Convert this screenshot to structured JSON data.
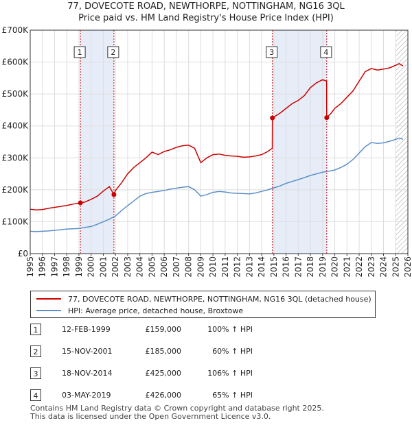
{
  "title_line1": "77, DOVECOTE ROAD, NEWTHORPE, NOTTINGHAM, NG16 3QL",
  "title_line2": "Price paid vs. HM Land Registry's House Price Index (HPI)",
  "colors": {
    "property": "#cc0000",
    "hpi": "#5b8fc9",
    "band": "#e6edf8",
    "marker_line": "#cc0000"
  },
  "chart_data": {
    "type": "line",
    "xlim": [
      1995,
      2026
    ],
    "ylim": [
      0,
      700000
    ],
    "x_ticks": [
      "1995",
      "1996",
      "1997",
      "1998",
      "1999",
      "2000",
      "2001",
      "2002",
      "2003",
      "2004",
      "2005",
      "2006",
      "2007",
      "2008",
      "2009",
      "2010",
      "2011",
      "2012",
      "2013",
      "2014",
      "2015",
      "2016",
      "2017",
      "2018",
      "2019",
      "2020",
      "2021",
      "2022",
      "2023",
      "2024",
      "2025",
      "2026"
    ],
    "y_ticks": [
      {
        "value": 0,
        "label": "£0"
      },
      {
        "value": 100000,
        "label": "£100K"
      },
      {
        "value": 200000,
        "label": "£200K"
      },
      {
        "value": 300000,
        "label": "£300K"
      },
      {
        "value": 400000,
        "label": "£400K"
      },
      {
        "value": 500000,
        "label": "£500K"
      },
      {
        "value": 600000,
        "label": "£600K"
      },
      {
        "value": 700000,
        "label": "£700K"
      }
    ],
    "shaded_bands": [
      [
        1999.12,
        2001.87
      ],
      [
        2014.88,
        2019.34
      ]
    ],
    "hatch_from": 2025.0,
    "series": [
      {
        "name": "77, DOVECOTE ROAD, NEWTHORPE, NOTTINGHAM, NG16 3QL (detached house)",
        "color": "#cc0000",
        "points": [
          [
            1995.0,
            139000
          ],
          [
            1995.5,
            137000
          ],
          [
            1996.0,
            138000
          ],
          [
            1996.5,
            142000
          ],
          [
            1997.0,
            145000
          ],
          [
            1997.5,
            148000
          ],
          [
            1998.0,
            151000
          ],
          [
            1998.5,
            155000
          ],
          [
            1999.12,
            159000
          ],
          [
            1999.5,
            162000
          ],
          [
            2000.0,
            170000
          ],
          [
            2000.5,
            180000
          ],
          [
            2001.0,
            196000
          ],
          [
            2001.5,
            210000
          ],
          [
            2001.87,
            185000
          ],
          [
            2002.0,
            198000
          ],
          [
            2002.5,
            222000
          ],
          [
            2003.0,
            250000
          ],
          [
            2003.5,
            270000
          ],
          [
            2004.0,
            285000
          ],
          [
            2004.5,
            300000
          ],
          [
            2005.0,
            318000
          ],
          [
            2005.5,
            310000
          ],
          [
            2006.0,
            320000
          ],
          [
            2006.5,
            325000
          ],
          [
            2007.0,
            333000
          ],
          [
            2007.5,
            338000
          ],
          [
            2008.0,
            340000
          ],
          [
            2008.5,
            330000
          ],
          [
            2009.0,
            285000
          ],
          [
            2009.5,
            300000
          ],
          [
            2010.0,
            310000
          ],
          [
            2010.5,
            312000
          ],
          [
            2011.0,
            308000
          ],
          [
            2011.5,
            306000
          ],
          [
            2012.0,
            305000
          ],
          [
            2012.5,
            302000
          ],
          [
            2013.0,
            303000
          ],
          [
            2013.5,
            306000
          ],
          [
            2014.0,
            310000
          ],
          [
            2014.5,
            320000
          ],
          [
            2014.87,
            330000
          ],
          [
            2014.88,
            425000
          ],
          [
            2015.5,
            440000
          ],
          [
            2016.0,
            455000
          ],
          [
            2016.5,
            470000
          ],
          [
            2017.0,
            480000
          ],
          [
            2017.5,
            495000
          ],
          [
            2018.0,
            520000
          ],
          [
            2018.5,
            535000
          ],
          [
            2019.0,
            545000
          ],
          [
            2019.33,
            540000
          ],
          [
            2019.34,
            426000
          ],
          [
            2019.7,
            440000
          ],
          [
            2020.0,
            455000
          ],
          [
            2020.5,
            470000
          ],
          [
            2021.0,
            490000
          ],
          [
            2021.5,
            510000
          ],
          [
            2022.0,
            540000
          ],
          [
            2022.5,
            570000
          ],
          [
            2023.0,
            580000
          ],
          [
            2023.5,
            575000
          ],
          [
            2024.0,
            578000
          ],
          [
            2024.5,
            582000
          ],
          [
            2025.0,
            590000
          ],
          [
            2025.3,
            595000
          ],
          [
            2025.6,
            588000
          ]
        ]
      },
      {
        "name": "HPI: Average price, detached house, Broxtowe",
        "color": "#5b8fc9",
        "points": [
          [
            1995.0,
            70000
          ],
          [
            1995.5,
            69000
          ],
          [
            1996.0,
            70000
          ],
          [
            1996.5,
            71000
          ],
          [
            1997.0,
            73000
          ],
          [
            1997.5,
            75000
          ],
          [
            1998.0,
            77000
          ],
          [
            1998.5,
            78000
          ],
          [
            1999.0,
            79000
          ],
          [
            1999.5,
            82000
          ],
          [
            2000.0,
            85000
          ],
          [
            2000.5,
            92000
          ],
          [
            2001.0,
            100000
          ],
          [
            2001.5,
            108000
          ],
          [
            2002.0,
            118000
          ],
          [
            2002.5,
            135000
          ],
          [
            2003.0,
            150000
          ],
          [
            2003.5,
            165000
          ],
          [
            2004.0,
            180000
          ],
          [
            2004.5,
            188000
          ],
          [
            2005.0,
            192000
          ],
          [
            2005.5,
            195000
          ],
          [
            2006.0,
            198000
          ],
          [
            2006.5,
            202000
          ],
          [
            2007.0,
            205000
          ],
          [
            2007.5,
            208000
          ],
          [
            2008.0,
            210000
          ],
          [
            2008.5,
            200000
          ],
          [
            2009.0,
            180000
          ],
          [
            2009.5,
            185000
          ],
          [
            2010.0,
            192000
          ],
          [
            2010.5,
            195000
          ],
          [
            2011.0,
            193000
          ],
          [
            2011.5,
            190000
          ],
          [
            2012.0,
            189000
          ],
          [
            2012.5,
            188000
          ],
          [
            2013.0,
            187000
          ],
          [
            2013.5,
            190000
          ],
          [
            2014.0,
            195000
          ],
          [
            2014.5,
            200000
          ],
          [
            2015.0,
            206000
          ],
          [
            2015.5,
            212000
          ],
          [
            2016.0,
            220000
          ],
          [
            2016.5,
            226000
          ],
          [
            2017.0,
            232000
          ],
          [
            2017.5,
            238000
          ],
          [
            2018.0,
            245000
          ],
          [
            2018.5,
            250000
          ],
          [
            2019.0,
            255000
          ],
          [
            2019.5,
            258000
          ],
          [
            2020.0,
            262000
          ],
          [
            2020.5,
            270000
          ],
          [
            2021.0,
            280000
          ],
          [
            2021.5,
            295000
          ],
          [
            2022.0,
            315000
          ],
          [
            2022.5,
            335000
          ],
          [
            2023.0,
            348000
          ],
          [
            2023.5,
            345000
          ],
          [
            2024.0,
            347000
          ],
          [
            2024.5,
            352000
          ],
          [
            2025.0,
            358000
          ],
          [
            2025.3,
            362000
          ],
          [
            2025.6,
            358000
          ]
        ]
      }
    ],
    "sales": [
      {
        "id": "1",
        "x": 1999.12,
        "y": 159000
      },
      {
        "id": "2",
        "x": 2001.87,
        "y": 185000
      },
      {
        "id": "3",
        "x": 2014.88,
        "y": 425000
      },
      {
        "id": "4",
        "x": 2019.34,
        "y": 426000
      }
    ]
  },
  "legend": {
    "property_label": "77, DOVECOTE ROAD, NEWTHORPE, NOTTINGHAM, NG16 3QL (detached house)",
    "hpi_label": "HPI: Average price, detached house, Broxtowe"
  },
  "transactions": [
    {
      "id": "1",
      "date": "12-FEB-1999",
      "price": "£159,000",
      "pct": "100% ↑ HPI"
    },
    {
      "id": "2",
      "date": "15-NOV-2001",
      "price": "£185,000",
      "pct": "60% ↑ HPI"
    },
    {
      "id": "3",
      "date": "18-NOV-2014",
      "price": "£425,000",
      "pct": "106% ↑ HPI"
    },
    {
      "id": "4",
      "date": "03-MAY-2019",
      "price": "£426,000",
      "pct": "65% ↑ HPI"
    }
  ],
  "footer_line1": "Contains HM Land Registry data © Crown copyright and database right 2025.",
  "footer_line2": "This data is licensed under the Open Government Licence v3.0."
}
